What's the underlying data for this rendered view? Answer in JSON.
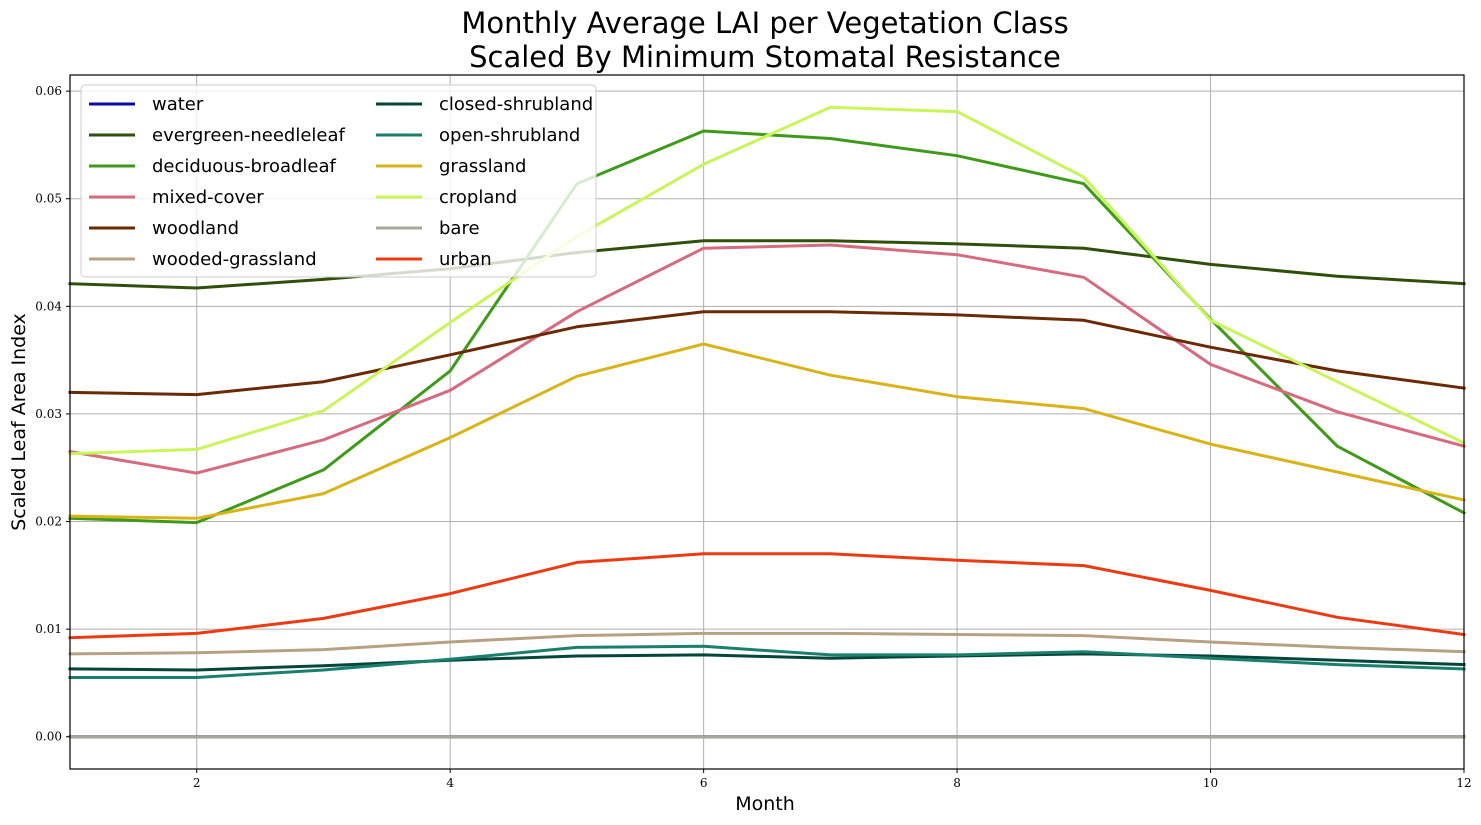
{
  "chart_data": {
    "type": "line",
    "title": [
      "Monthly Average LAI per Vegetation Class",
      "Scaled By Minimum Stomatal Resistance"
    ],
    "xlabel": "Month",
    "ylabel": "Scaled Leaf Area Index",
    "xlim": [
      1,
      12
    ],
    "ylim": [
      -0.003,
      0.0615
    ],
    "xticks": [
      2,
      4,
      6,
      8,
      10,
      12
    ],
    "yticks": [
      0.0,
      0.01,
      0.02,
      0.03,
      0.04,
      0.05,
      0.06
    ],
    "xtick_labels": [
      "2",
      "4",
      "6",
      "8",
      "10",
      "12"
    ],
    "ytick_labels": [
      "0.00",
      "0.01",
      "0.02",
      "0.03",
      "0.04",
      "0.05",
      "0.06"
    ],
    "grid": true,
    "legend_position": "top-left",
    "legend_columns": 2,
    "x": [
      1,
      2,
      3,
      4,
      5,
      6,
      7,
      8,
      9,
      10,
      11,
      12
    ],
    "series": [
      {
        "name": "water",
        "color": "#0a0a9e",
        "values": [
          0,
          0,
          0,
          0,
          0,
          0,
          0,
          0,
          0,
          0,
          0,
          0
        ]
      },
      {
        "name": "evergreen-needleleaf",
        "color": "#2f4f0b",
        "values": [
          0.0421,
          0.0417,
          0.0425,
          0.0435,
          0.045,
          0.0461,
          0.0461,
          0.0458,
          0.0454,
          0.0439,
          0.0428,
          0.0421
        ]
      },
      {
        "name": "deciduous-broadleaf",
        "color": "#3f9a1a",
        "values": [
          0.0203,
          0.0199,
          0.0248,
          0.034,
          0.0514,
          0.0563,
          0.0556,
          0.054,
          0.0514,
          0.0388,
          0.027,
          0.0208
        ]
      },
      {
        "name": "mixed-cover",
        "color": "#d66b80",
        "values": [
          0.0265,
          0.0245,
          0.0276,
          0.0322,
          0.0395,
          0.0454,
          0.0457,
          0.0448,
          0.0427,
          0.0346,
          0.0302,
          0.027
        ]
      },
      {
        "name": "woodland",
        "color": "#6b2a06",
        "values": [
          0.032,
          0.0318,
          0.033,
          0.0355,
          0.0381,
          0.0395,
          0.0395,
          0.0392,
          0.0387,
          0.0362,
          0.034,
          0.0324
        ]
      },
      {
        "name": "wooded-grassland",
        "color": "#b8a082",
        "values": [
          0.0077,
          0.0078,
          0.0081,
          0.0088,
          0.0094,
          0.0096,
          0.0096,
          0.0095,
          0.0094,
          0.0088,
          0.0083,
          0.0079
        ]
      },
      {
        "name": "closed-shrubland",
        "color": "#04473a",
        "values": [
          0.0063,
          0.0062,
          0.0066,
          0.0071,
          0.0075,
          0.0076,
          0.0073,
          0.0075,
          0.0077,
          0.0075,
          0.0071,
          0.0067
        ]
      },
      {
        "name": "open-shrubland",
        "color": "#1b7f6e",
        "values": [
          0.0055,
          0.0055,
          0.0062,
          0.0072,
          0.0083,
          0.0084,
          0.0076,
          0.0076,
          0.0079,
          0.0073,
          0.0067,
          0.0063
        ]
      },
      {
        "name": "grassland",
        "color": "#d9b31a",
        "values": [
          0.0205,
          0.0203,
          0.0226,
          0.0278,
          0.0335,
          0.0365,
          0.0336,
          0.0316,
          0.0305,
          0.0272,
          0.0246,
          0.022
        ]
      },
      {
        "name": "cropland",
        "color": "#c9f55a",
        "values": [
          0.0263,
          0.0267,
          0.0303,
          0.0385,
          0.0465,
          0.0532,
          0.0585,
          0.0581,
          0.052,
          0.0387,
          0.033,
          0.0273
        ]
      },
      {
        "name": "bare",
        "color": "#a8a89a",
        "values": [
          0,
          0,
          0,
          0,
          0,
          0,
          0,
          0,
          0,
          0,
          0,
          0
        ]
      },
      {
        "name": "urban",
        "color": "#ee3a12",
        "values": [
          0.0092,
          0.0096,
          0.011,
          0.0133,
          0.0162,
          0.017,
          0.017,
          0.0164,
          0.0159,
          0.0136,
          0.0111,
          0.0095
        ]
      }
    ]
  }
}
